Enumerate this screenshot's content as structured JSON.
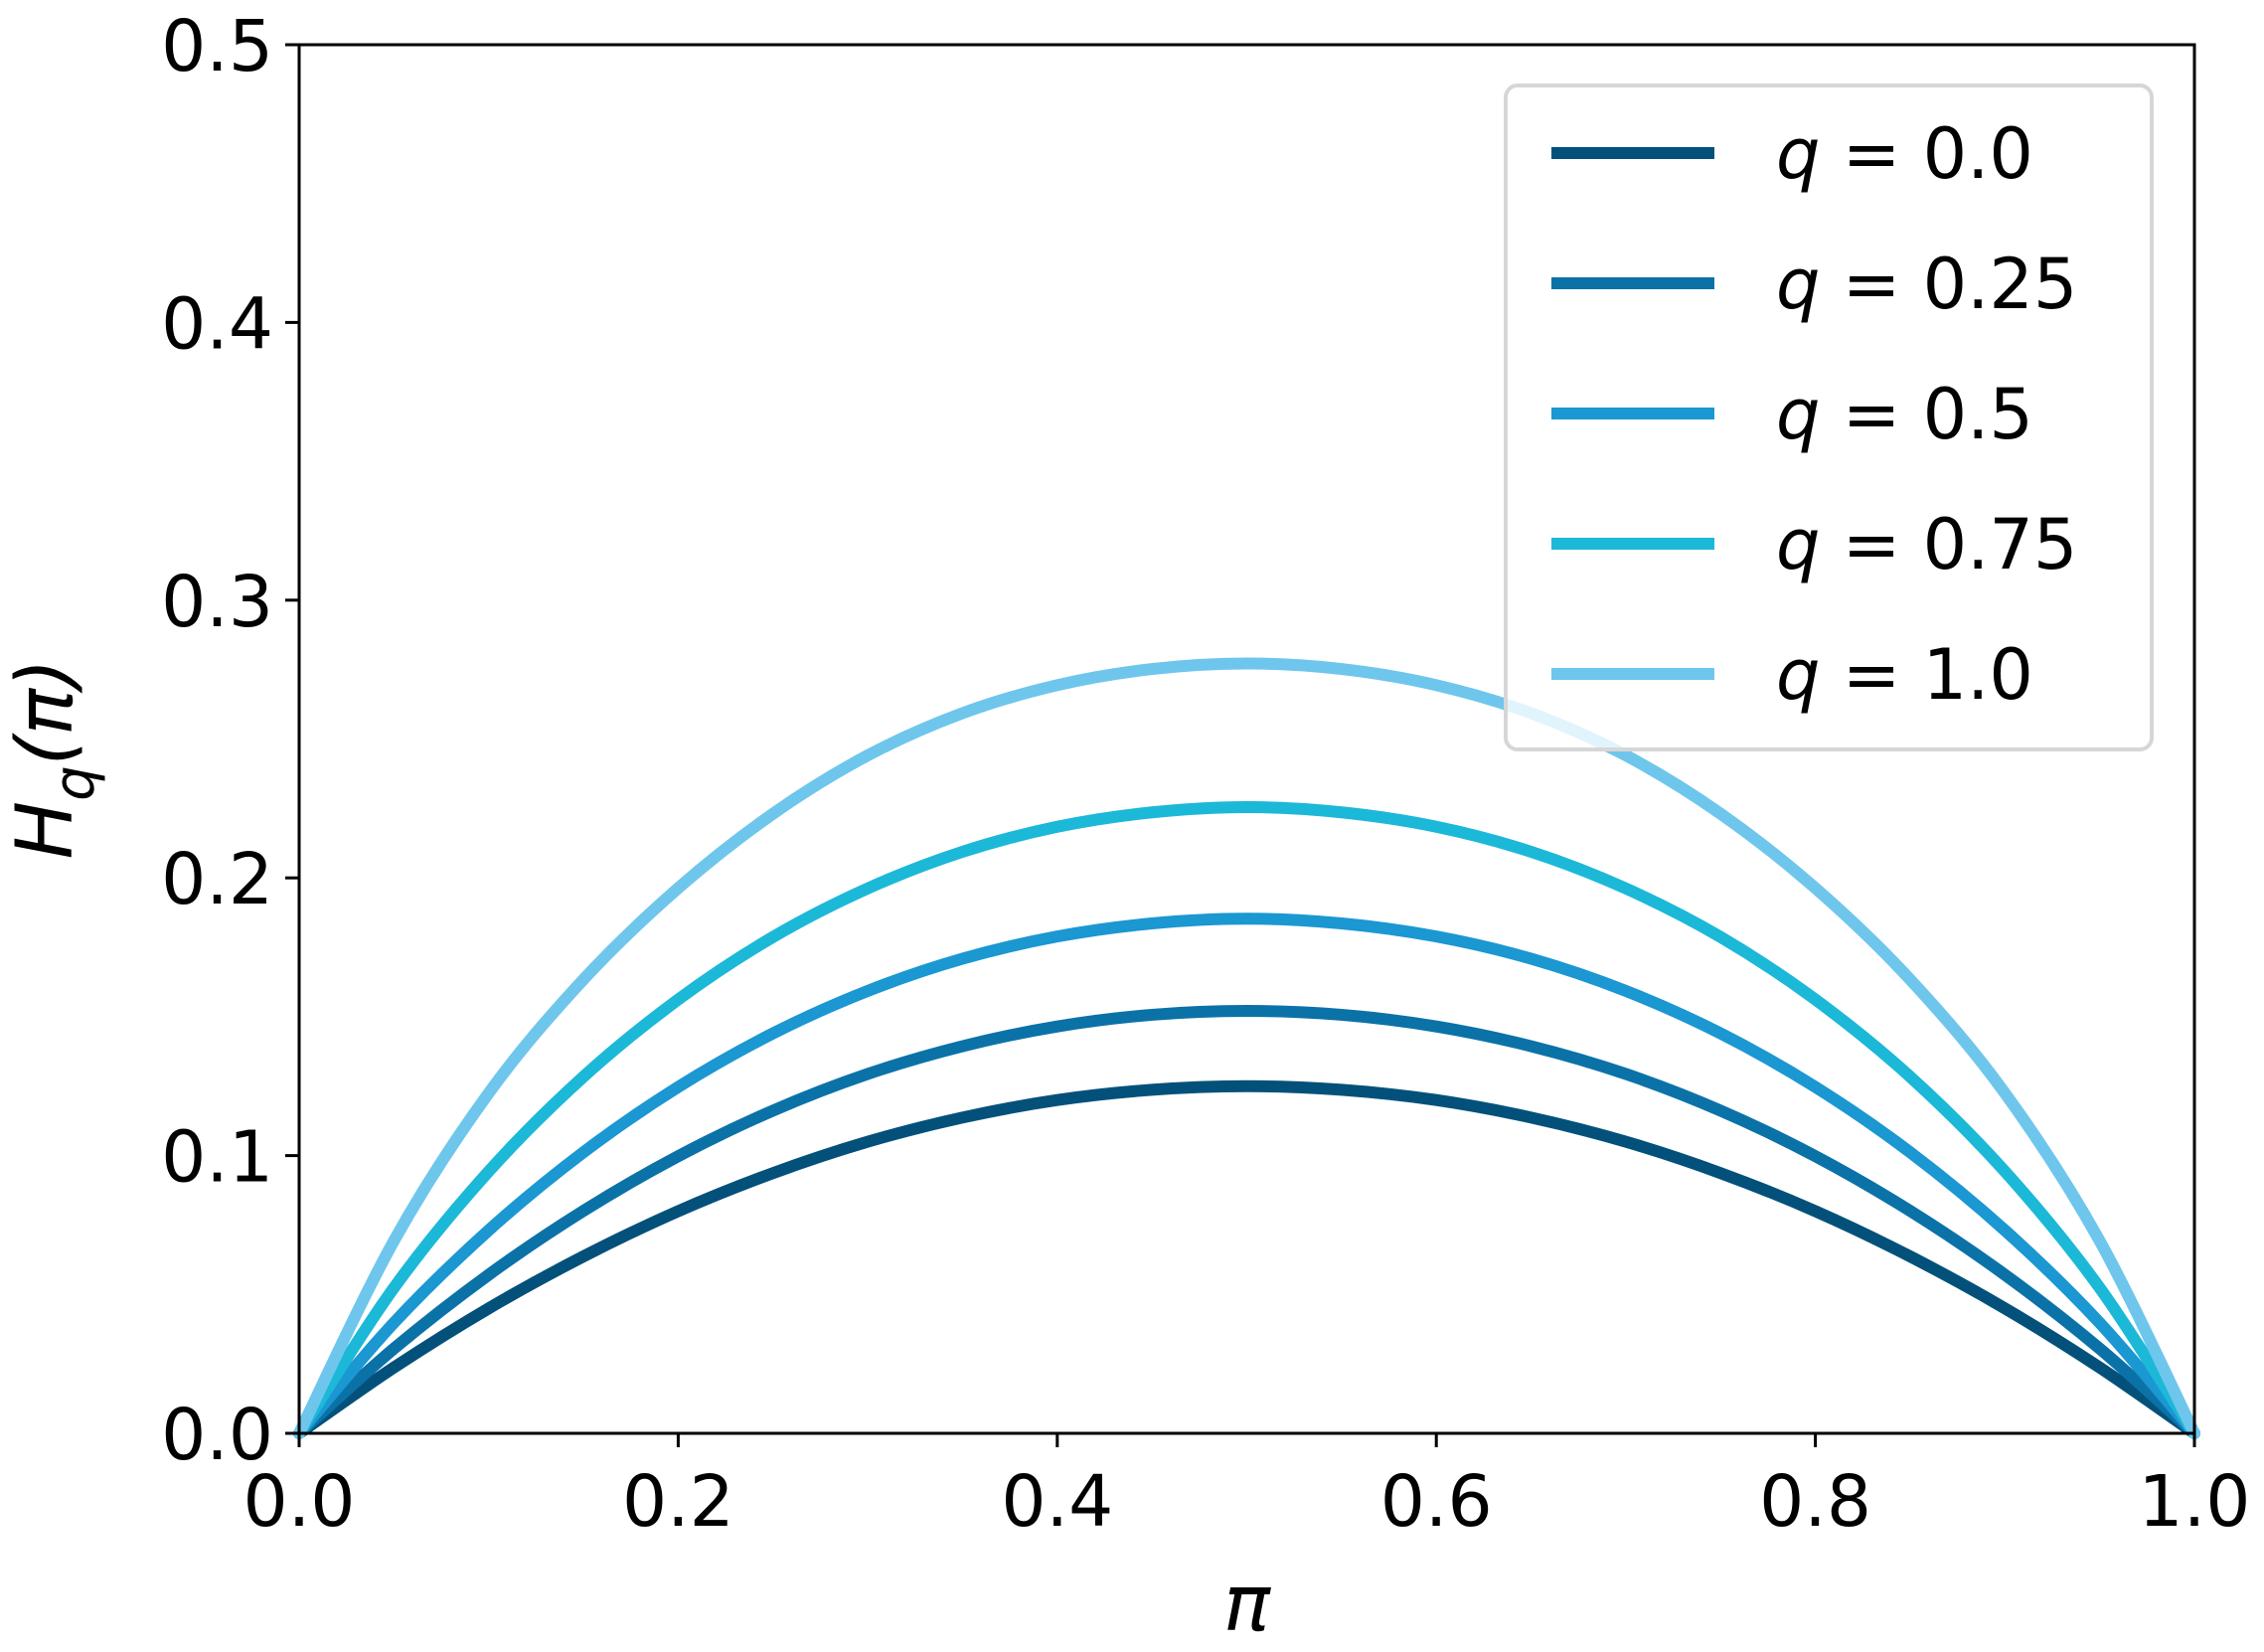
{
  "chart_data": {
    "type": "line",
    "xlabel": "π",
    "ylabel": "H_q(π)",
    "ylabel_main": "H",
    "ylabel_sub": "q",
    "ylabel_arg": "(π)",
    "xlim": [
      0.0,
      1.0
    ],
    "ylim": [
      0.0,
      0.5
    ],
    "xticks": [
      0.0,
      0.2,
      0.4,
      0.6,
      0.8,
      1.0
    ],
    "xtick_labels": [
      "0.0",
      "0.2",
      "0.4",
      "0.6",
      "0.8",
      "1.0"
    ],
    "yticks": [
      0.0,
      0.1,
      0.2,
      0.3,
      0.4,
      0.5
    ],
    "ytick_labels": [
      "0.0",
      "0.1",
      "0.2",
      "0.3",
      "0.4",
      "0.5"
    ],
    "grid": false,
    "legend_position": "top-right",
    "x": [
      0.0,
      0.05,
      0.1,
      0.15,
      0.2,
      0.25,
      0.3,
      0.35,
      0.4,
      0.45,
      0.5,
      0.55,
      0.6,
      0.65,
      0.7,
      0.75,
      0.8,
      0.85,
      0.9,
      0.95,
      1.0
    ],
    "series": [
      {
        "name": "q = 0.0",
        "legend_var": "q",
        "legend_val": "0.0",
        "color": "#03517a",
        "values": [
          0.0,
          0.0237,
          0.045,
          0.0637,
          0.08,
          0.0937,
          0.105,
          0.1137,
          0.12,
          0.1237,
          0.125,
          0.1237,
          0.12,
          0.1137,
          0.105,
          0.0937,
          0.08,
          0.0637,
          0.045,
          0.0237,
          0.0
        ]
      },
      {
        "name": "q = 0.25",
        "legend_var": "q",
        "legend_val": "0.25",
        "color": "#0b72a8",
        "values": [
          0.0,
          0.0305,
          0.0571,
          0.0801,
          0.0998,
          0.1162,
          0.1294,
          0.1394,
          0.1465,
          0.1507,
          0.1521,
          0.1507,
          0.1465,
          0.1394,
          0.1294,
          0.1162,
          0.0998,
          0.0801,
          0.0571,
          0.0305,
          0.0
        ]
      },
      {
        "name": "q = 0.5",
        "legend_var": "q",
        "legend_val": "0.5",
        "color": "#1b97d2",
        "values": [
          0.0,
          0.0398,
          0.0731,
          0.1012,
          0.1247,
          0.144,
          0.1593,
          0.1709,
          0.1789,
          0.1836,
          0.1853,
          0.1836,
          0.1789,
          0.1709,
          0.1593,
          0.144,
          0.1247,
          0.1012,
          0.0731,
          0.0398,
          0.0
        ]
      },
      {
        "name": "q = 0.75",
        "legend_var": "q",
        "legend_val": "0.75",
        "color": "#1cb8d8",
        "values": [
          0.0,
          0.0524,
          0.0943,
          0.1284,
          0.1562,
          0.1787,
          0.1962,
          0.2094,
          0.2184,
          0.2236,
          0.2255,
          0.2236,
          0.2184,
          0.2094,
          0.1962,
          0.1787,
          0.1562,
          0.1284,
          0.0943,
          0.0524,
          0.0
        ]
      },
      {
        "name": "q = 1.0",
        "legend_var": "q",
        "legend_val": "1.0",
        "color": "#6fc6ec",
        "values": [
          0.0,
          0.0693,
          0.1225,
          0.1634,
          0.1963,
          0.2231,
          0.2441,
          0.2593,
          0.2694,
          0.2752,
          0.2772,
          0.2752,
          0.2694,
          0.2593,
          0.2441,
          0.2231,
          0.1963,
          0.1634,
          0.1225,
          0.0693,
          0.0
        ]
      }
    ]
  }
}
